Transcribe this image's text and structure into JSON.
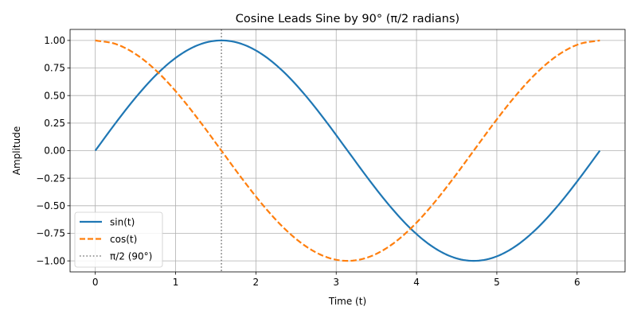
{
  "chart_data": {
    "type": "line",
    "title": "Cosine Leads Sine by 90° (π/2 radians)",
    "xlabel": "Time (t)",
    "ylabel": "Amplitude",
    "xlim": [
      -0.314,
      6.597
    ],
    "ylim": [
      -1.1,
      1.1
    ],
    "x_ticks": [
      0,
      1,
      2,
      3,
      4,
      5,
      6
    ],
    "x_tick_labels": [
      "0",
      "1",
      "2",
      "3",
      "4",
      "5",
      "6"
    ],
    "y_ticks": [
      -1.0,
      -0.75,
      -0.5,
      -0.25,
      0.0,
      0.25,
      0.5,
      0.75,
      1.0
    ],
    "y_tick_labels": [
      "−1.00",
      "−0.75",
      "−0.50",
      "−0.25",
      "0.00",
      "0.25",
      "0.50",
      "0.75",
      "1.00"
    ],
    "grid": true,
    "legend_position": "lower-left",
    "x": [
      0.0,
      0.2618,
      0.5236,
      0.7854,
      1.0472,
      1.309,
      1.5708,
      1.8326,
      2.0944,
      2.3562,
      2.618,
      2.8798,
      3.1416,
      3.4034,
      3.6652,
      3.927,
      4.1888,
      4.4506,
      4.7124,
      4.9742,
      5.236,
      5.4978,
      5.7596,
      6.0214,
      6.2832
    ],
    "series": [
      {
        "name": "sin(t)",
        "color": "#1f77b4",
        "style": "solid",
        "values": [
          0.0,
          0.2588,
          0.5,
          0.7071,
          0.866,
          0.9659,
          1.0,
          0.9659,
          0.866,
          0.7071,
          0.5,
          0.2588,
          0.0,
          -0.2588,
          -0.5,
          -0.7071,
          -0.866,
          -0.9659,
          -1.0,
          -0.9659,
          -0.866,
          -0.7071,
          -0.5,
          -0.2588,
          0.0
        ]
      },
      {
        "name": "cos(t)",
        "color": "#ff7f0e",
        "style": "dashed",
        "values": [
          1.0,
          0.9659,
          0.866,
          0.7071,
          0.5,
          0.2588,
          0.0,
          -0.2588,
          -0.5,
          -0.7071,
          -0.866,
          -0.9659,
          -1.0,
          -0.9659,
          -0.866,
          -0.7071,
          -0.5,
          -0.2588,
          0.0,
          0.2588,
          0.5,
          0.7071,
          0.866,
          0.9659,
          1.0
        ]
      }
    ],
    "reference_lines": [
      {
        "name": "π/2 (90°)",
        "orientation": "vertical",
        "x": 1.5708,
        "color": "#808080",
        "style": "dotted"
      }
    ]
  }
}
